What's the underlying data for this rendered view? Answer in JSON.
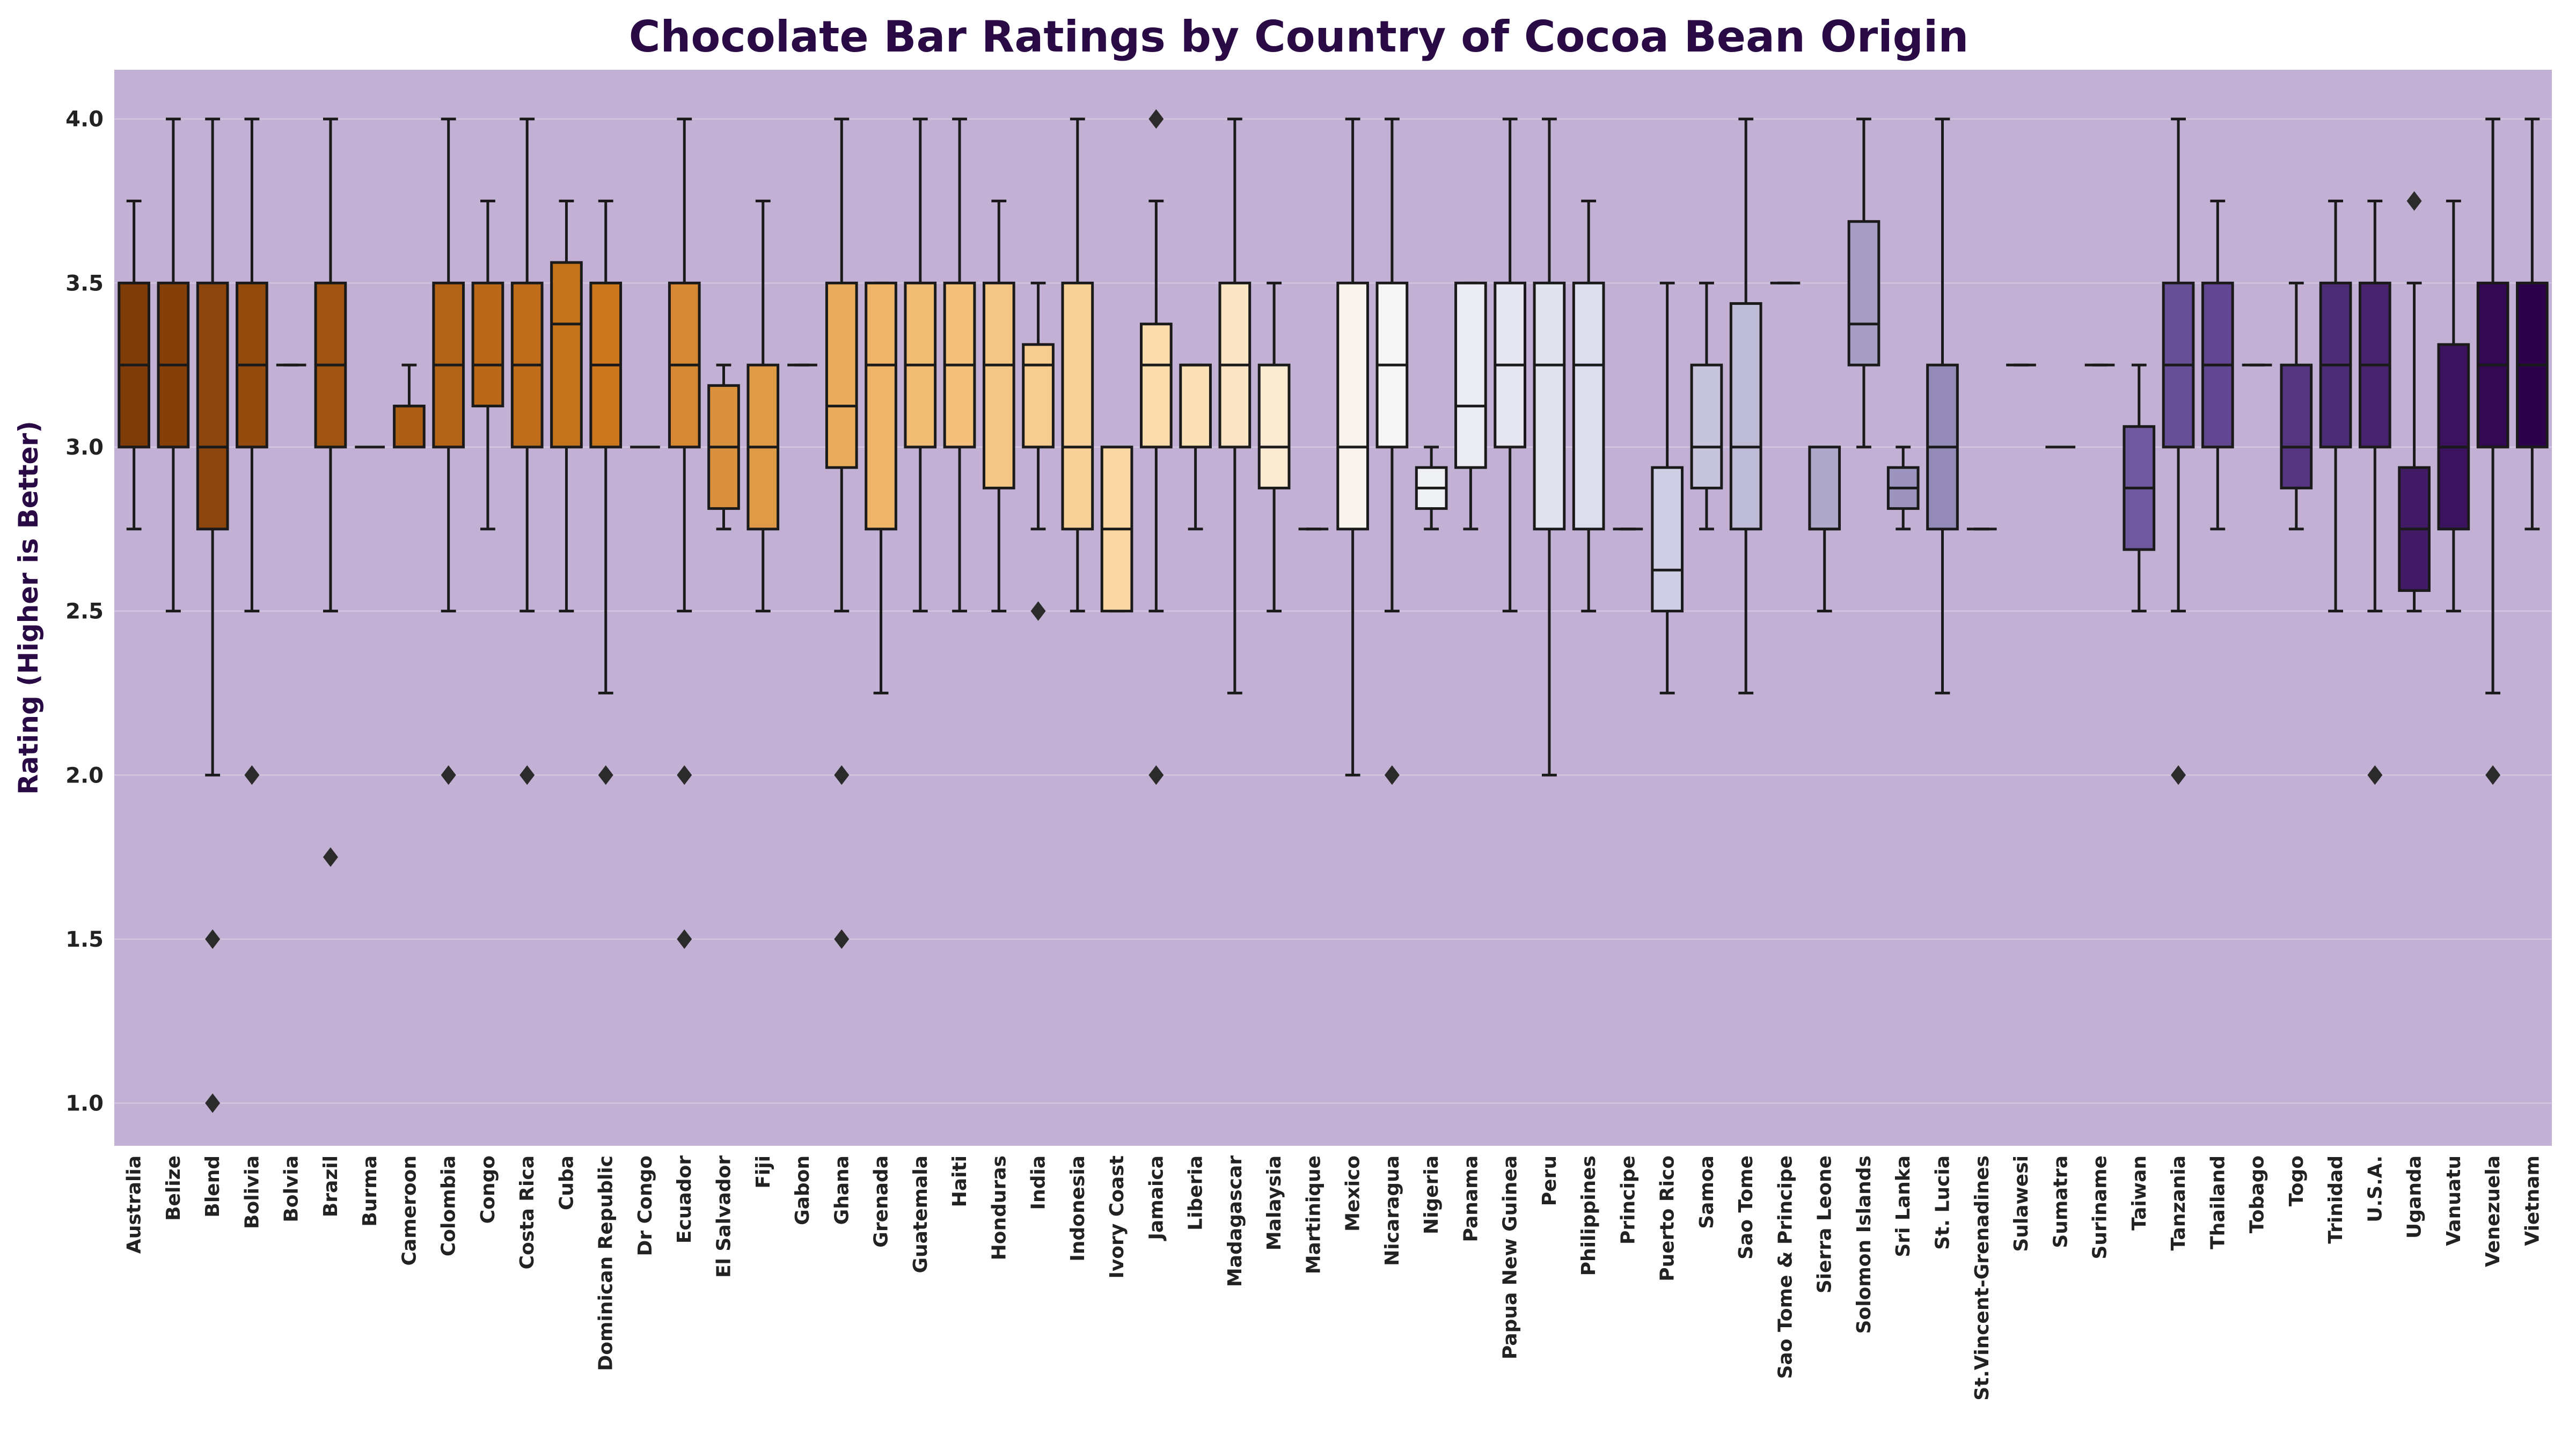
{
  "chart_data": {
    "type": "box",
    "title": "Chocolate Bar Ratings by Country of Cocoa Bean Origin",
    "ylabel": "Rating (Higher is Better)",
    "xlabel": "",
    "ylim": [
      0.87,
      4.15
    ],
    "yticks": [
      "1.0",
      "1.5",
      "2.0",
      "2.5",
      "3.0",
      "3.5",
      "4.0"
    ],
    "grid": "horizontal",
    "legend": "none",
    "palette": "PuOr",
    "plot_background": "#c2b1d4",
    "categories": [
      "Australia",
      "Belize",
      "Blend",
      "Bolivia",
      "Bolvia",
      "Brazil",
      "Burma",
      "Cameroon",
      "Colombia",
      "Congo",
      "Costa Rica",
      "Cuba",
      "Dominican Republic",
      "Dr Congo",
      "Ecuador",
      "El Salvador",
      "Fiji",
      "Gabon",
      "Ghana",
      "Grenada",
      "Guatemala",
      "Haiti",
      "Honduras",
      "India",
      "Indonesia",
      "Ivory Coast",
      "Jamaica",
      "Liberia",
      "Madagascar",
      "Malaysia",
      "Martinique",
      "Mexico",
      "Nicaragua",
      "Nigeria",
      "Panama",
      "Papua New Guinea",
      "Peru",
      "Philippines",
      "Principe",
      "Puerto Rico",
      "Samoa",
      "Sao Tome",
      "Sao Tome & Principe",
      "Sierra Leone",
      "Solomon Islands",
      "Sri Lanka",
      "St. Lucia",
      "St.Vincent-Grenadines",
      "Sulawesi",
      "Sumatra",
      "Suriname",
      "Taiwan",
      "Tanzania",
      "Thailand",
      "Tobago",
      "Togo",
      "Trinidad",
      "U.S.A.",
      "Uganda",
      "Vanuatu",
      "Venezuela",
      "Vietnam"
    ],
    "boxes": [
      {
        "min": 2.75,
        "q1": 3.0,
        "median": 3.25,
        "q3": 3.5,
        "max": 3.75,
        "outliers": []
      },
      {
        "min": 2.5,
        "q1": 3.0,
        "median": 3.25,
        "q3": 3.5,
        "max": 4.0,
        "outliers": []
      },
      {
        "min": 2.0,
        "q1": 2.75,
        "median": 3.0,
        "q3": 3.5,
        "max": 4.0,
        "outliers": [
          1.5,
          1.0
        ]
      },
      {
        "min": 2.5,
        "q1": 3.0,
        "median": 3.25,
        "q3": 3.5,
        "max": 4.0,
        "outliers": [
          2.0
        ]
      },
      {
        "min": 3.25,
        "q1": 3.25,
        "median": 3.25,
        "q3": 3.25,
        "max": 3.25,
        "outliers": []
      },
      {
        "min": 2.5,
        "q1": 3.0,
        "median": 3.25,
        "q3": 3.5,
        "max": 4.0,
        "outliers": [
          1.75
        ]
      },
      {
        "min": 3.0,
        "q1": 3.0,
        "median": 3.0,
        "q3": 3.0,
        "max": 3.0,
        "outliers": []
      },
      {
        "min": 3.0,
        "q1": 3.0,
        "median": 3.125,
        "q3": 3.125,
        "max": 3.25,
        "outliers": []
      },
      {
        "min": 2.5,
        "q1": 3.0,
        "median": 3.25,
        "q3": 3.5,
        "max": 4.0,
        "outliers": [
          2.0
        ]
      },
      {
        "min": 2.75,
        "q1": 3.125,
        "median": 3.25,
        "q3": 3.5,
        "max": 3.75,
        "outliers": []
      },
      {
        "min": 2.5,
        "q1": 3.0,
        "median": 3.25,
        "q3": 3.5,
        "max": 4.0,
        "outliers": [
          2.0
        ]
      },
      {
        "min": 2.5,
        "q1": 3.0,
        "median": 3.375,
        "q3": 3.5625,
        "max": 3.75,
        "outliers": []
      },
      {
        "min": 2.25,
        "q1": 3.0,
        "median": 3.25,
        "q3": 3.5,
        "max": 3.75,
        "outliers": [
          2.0
        ]
      },
      {
        "min": 3.0,
        "q1": 3.0,
        "median": 3.0,
        "q3": 3.0,
        "max": 3.0,
        "outliers": []
      },
      {
        "min": 2.5,
        "q1": 3.0,
        "median": 3.25,
        "q3": 3.5,
        "max": 4.0,
        "outliers": [
          2.0,
          1.5
        ]
      },
      {
        "min": 2.75,
        "q1": 2.8125,
        "median": 3.0,
        "q3": 3.1875,
        "max": 3.25,
        "outliers": []
      },
      {
        "min": 2.5,
        "q1": 2.75,
        "median": 3.0,
        "q3": 3.25,
        "max": 3.75,
        "outliers": []
      },
      {
        "min": 3.25,
        "q1": 3.25,
        "median": 3.25,
        "q3": 3.25,
        "max": 3.25,
        "outliers": []
      },
      {
        "min": 2.5,
        "q1": 2.9375,
        "median": 3.125,
        "q3": 3.5,
        "max": 4.0,
        "outliers": [
          2.0,
          1.5
        ]
      },
      {
        "min": 2.25,
        "q1": 2.75,
        "median": 3.25,
        "q3": 3.5,
        "max": 3.5,
        "outliers": []
      },
      {
        "min": 2.5,
        "q1": 3.0,
        "median": 3.25,
        "q3": 3.5,
        "max": 4.0,
        "outliers": []
      },
      {
        "min": 2.5,
        "q1": 3.0,
        "median": 3.25,
        "q3": 3.5,
        "max": 4.0,
        "outliers": []
      },
      {
        "min": 2.5,
        "q1": 2.875,
        "median": 3.25,
        "q3": 3.5,
        "max": 3.75,
        "outliers": []
      },
      {
        "min": 2.75,
        "q1": 3.0,
        "median": 3.25,
        "q3": 3.3125,
        "max": 3.5,
        "outliers": [
          2.5
        ]
      },
      {
        "min": 2.5,
        "q1": 2.75,
        "median": 3.0,
        "q3": 3.5,
        "max": 4.0,
        "outliers": []
      },
      {
        "min": 2.5,
        "q1": 2.5,
        "median": 2.75,
        "q3": 3.0,
        "max": 3.0,
        "outliers": []
      },
      {
        "min": 2.5,
        "q1": 3.0,
        "median": 3.25,
        "q3": 3.375,
        "max": 3.75,
        "outliers": [
          4.0,
          2.0
        ]
      },
      {
        "min": 2.75,
        "q1": 3.0,
        "median": 3.25,
        "q3": 3.25,
        "max": 3.25,
        "outliers": []
      },
      {
        "min": 2.25,
        "q1": 3.0,
        "median": 3.25,
        "q3": 3.5,
        "max": 4.0,
        "outliers": []
      },
      {
        "min": 2.5,
        "q1": 2.875,
        "median": 3.0,
        "q3": 3.25,
        "max": 3.5,
        "outliers": []
      },
      {
        "min": 2.75,
        "q1": 2.75,
        "median": 2.75,
        "q3": 2.75,
        "max": 2.75,
        "outliers": []
      },
      {
        "min": 2.0,
        "q1": 2.75,
        "median": 3.0,
        "q3": 3.5,
        "max": 4.0,
        "outliers": []
      },
      {
        "min": 2.5,
        "q1": 3.0,
        "median": 3.25,
        "q3": 3.5,
        "max": 4.0,
        "outliers": [
          2.0
        ]
      },
      {
        "min": 2.75,
        "q1": 2.8125,
        "median": 2.875,
        "q3": 2.9375,
        "max": 3.0,
        "outliers": []
      },
      {
        "min": 2.75,
        "q1": 2.9375,
        "median": 3.125,
        "q3": 3.5,
        "max": 3.5,
        "outliers": []
      },
      {
        "min": 2.5,
        "q1": 3.0,
        "median": 3.25,
        "q3": 3.5,
        "max": 4.0,
        "outliers": []
      },
      {
        "min": 2.0,
        "q1": 2.75,
        "median": 3.25,
        "q3": 3.5,
        "max": 4.0,
        "outliers": []
      },
      {
        "min": 2.5,
        "q1": 2.75,
        "median": 3.25,
        "q3": 3.5,
        "max": 3.75,
        "outliers": []
      },
      {
        "min": 2.75,
        "q1": 2.75,
        "median": 2.75,
        "q3": 2.75,
        "max": 2.75,
        "outliers": []
      },
      {
        "min": 2.25,
        "q1": 2.5,
        "median": 2.625,
        "q3": 2.9375,
        "max": 3.5,
        "outliers": []
      },
      {
        "min": 2.75,
        "q1": 2.875,
        "median": 3.0,
        "q3": 3.25,
        "max": 3.5,
        "outliers": []
      },
      {
        "min": 2.25,
        "q1": 2.75,
        "median": 3.0,
        "q3": 3.4375,
        "max": 4.0,
        "outliers": []
      },
      {
        "min": 3.5,
        "q1": 3.5,
        "median": 3.5,
        "q3": 3.5,
        "max": 3.5,
        "outliers": []
      },
      {
        "min": 2.5,
        "q1": 2.75,
        "median": 2.75,
        "q3": 3.0,
        "max": 3.0,
        "outliers": []
      },
      {
        "min": 3.0,
        "q1": 3.25,
        "median": 3.375,
        "q3": 3.6875,
        "max": 4.0,
        "outliers": []
      },
      {
        "min": 2.75,
        "q1": 2.8125,
        "median": 2.875,
        "q3": 2.9375,
        "max": 3.0,
        "outliers": []
      },
      {
        "min": 2.25,
        "q1": 2.75,
        "median": 3.0,
        "q3": 3.25,
        "max": 4.0,
        "outliers": []
      },
      {
        "min": 2.75,
        "q1": 2.75,
        "median": 2.75,
        "q3": 2.75,
        "max": 2.75,
        "outliers": []
      },
      {
        "min": 3.25,
        "q1": 3.25,
        "median": 3.25,
        "q3": 3.25,
        "max": 3.25,
        "outliers": []
      },
      {
        "min": 3.0,
        "q1": 3.0,
        "median": 3.0,
        "q3": 3.0,
        "max": 3.0,
        "outliers": []
      },
      {
        "min": 3.25,
        "q1": 3.25,
        "median": 3.25,
        "q3": 3.25,
        "max": 3.25,
        "outliers": []
      },
      {
        "min": 2.5,
        "q1": 2.6875,
        "median": 2.875,
        "q3": 3.0625,
        "max": 3.25,
        "outliers": []
      },
      {
        "min": 2.5,
        "q1": 3.0,
        "median": 3.25,
        "q3": 3.5,
        "max": 4.0,
        "outliers": [
          2.0
        ]
      },
      {
        "min": 2.75,
        "q1": 3.0,
        "median": 3.25,
        "q3": 3.5,
        "max": 3.75,
        "outliers": []
      },
      {
        "min": 3.25,
        "q1": 3.25,
        "median": 3.25,
        "q3": 3.25,
        "max": 3.25,
        "outliers": []
      },
      {
        "min": 2.75,
        "q1": 2.875,
        "median": 3.0,
        "q3": 3.25,
        "max": 3.5,
        "outliers": []
      },
      {
        "min": 2.5,
        "q1": 3.0,
        "median": 3.25,
        "q3": 3.5,
        "max": 3.75,
        "outliers": []
      },
      {
        "min": 2.5,
        "q1": 3.0,
        "median": 3.25,
        "q3": 3.5,
        "max": 3.75,
        "outliers": [
          2.0
        ]
      },
      {
        "min": 2.5,
        "q1": 2.5625,
        "median": 2.75,
        "q3": 2.9375,
        "max": 3.5,
        "outliers": [
          3.75
        ]
      },
      {
        "min": 2.5,
        "q1": 2.75,
        "median": 3.0,
        "q3": 3.3125,
        "max": 3.75,
        "outliers": []
      },
      {
        "min": 2.25,
        "q1": 3.0,
        "median": 3.25,
        "q3": 3.5,
        "max": 4.0,
        "outliers": [
          2.0
        ]
      },
      {
        "min": 2.75,
        "q1": 3.0,
        "median": 3.25,
        "q3": 3.5,
        "max": 4.0,
        "outliers": []
      }
    ]
  }
}
